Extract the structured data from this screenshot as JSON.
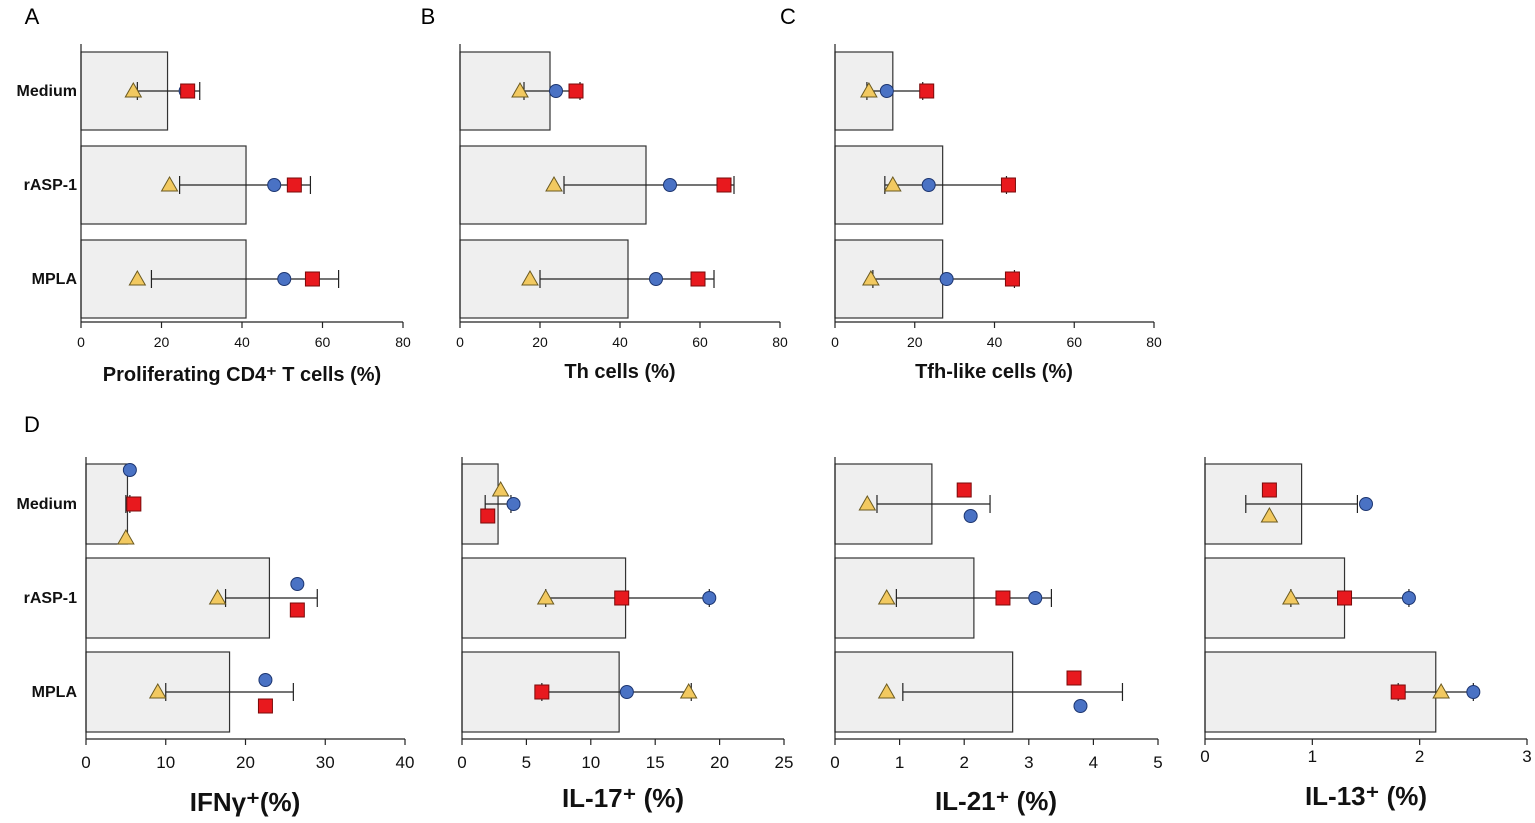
{
  "colors": {
    "bar_fill": "#efefef",
    "bar_stroke": "#333333",
    "triangle": "#f2c960",
    "triangle_stroke": "#6b5a20",
    "circle": "#4a72c4",
    "circle_stroke": "#1c3570",
    "square": "#e8191e",
    "square_stroke": "#7a0a0a",
    "axis": "#222222"
  },
  "chart_data": [
    {
      "type": "bar",
      "panel": "A",
      "letter": "A",
      "categories": [
        "Medium",
        "rASP-1",
        "MPLA"
      ],
      "values": [
        21.5,
        41,
        41
      ],
      "xlabel": "Proliferating CD4⁺ T cells (%)",
      "xlim": [
        0,
        80
      ],
      "xticks": [
        0,
        20,
        40,
        60,
        80
      ],
      "points": [
        {
          "triangle": 13,
          "circle": 26,
          "square": 26.5,
          "err": [
            14,
            29.5
          ]
        },
        {
          "triangle": 22,
          "circle": 48,
          "square": 53,
          "err": [
            24.5,
            57
          ]
        },
        {
          "triangle": 14,
          "circle": 50.5,
          "square": 57.5,
          "err": [
            17.5,
            64
          ]
        }
      ]
    },
    {
      "type": "bar",
      "panel": "B",
      "letter": "B",
      "categories": [
        "Medium",
        "rASP-1",
        "MPLA"
      ],
      "values": [
        22.5,
        46.5,
        42
      ],
      "xlabel": "Th cells (%)",
      "xlim": [
        0,
        80
      ],
      "xticks": [
        0,
        20,
        40,
        60,
        80
      ],
      "points": [
        {
          "triangle": 15,
          "circle": 24,
          "square": 29,
          "err": [
            16,
            30
          ]
        },
        {
          "triangle": 23.5,
          "circle": 52.5,
          "square": 66,
          "err": [
            26,
            68.5
          ]
        },
        {
          "triangle": 17.5,
          "circle": 49,
          "square": 59.5,
          "err": [
            20,
            63.5
          ]
        }
      ]
    },
    {
      "type": "bar",
      "panel": "C",
      "letter": "C",
      "categories": [
        "Medium",
        "rASP-1",
        "MPLA"
      ],
      "values": [
        14.5,
        27,
        27
      ],
      "xlabel": "Tfh-like cells (%)",
      "xlim": [
        0,
        80
      ],
      "xticks": [
        0,
        20,
        40,
        60,
        80
      ],
      "points": [
        {
          "triangle": 8.5,
          "circle": 13,
          "square": 23,
          "err": [
            8,
            22
          ]
        },
        {
          "triangle": 14.5,
          "circle": 23.5,
          "square": 43.5,
          "err": [
            12.5,
            43
          ]
        },
        {
          "triangle": 9,
          "circle": 28,
          "square": 44.5,
          "err": [
            9.5,
            45
          ]
        }
      ]
    },
    {
      "type": "bar",
      "panel": "D1",
      "letter": "D",
      "categories": [
        "Medium",
        "rASP-1",
        "MPLA"
      ],
      "values": [
        5.2,
        23,
        18
      ],
      "xlabel": "IFNγ⁺(%)",
      "xlim": [
        0,
        40
      ],
      "xticks": [
        0,
        10,
        20,
        30,
        40
      ],
      "points": [
        {
          "triangle": 5,
          "circle": 5.5,
          "square": 6,
          "err": [
            5,
            5.5
          ]
        },
        {
          "triangle": 16.5,
          "circle": 26.5,
          "square": 26.5,
          "err": [
            17.5,
            29
          ]
        },
        {
          "triangle": 9,
          "circle": 22.5,
          "square": 22.5,
          "err": [
            10,
            26
          ]
        }
      ]
    },
    {
      "type": "bar",
      "panel": "D2",
      "letter": "",
      "categories": [
        "Medium",
        "rASP-1",
        "MPLA"
      ],
      "values": [
        2.8,
        12.7,
        12.2
      ],
      "xlabel": "IL-17⁺ (%)",
      "xlim": [
        0,
        25
      ],
      "xticks": [
        0,
        5,
        10,
        15,
        20,
        25
      ],
      "points": [
        {
          "triangle": 3,
          "circle": 4,
          "square": 2,
          "err": [
            1.8,
            3.8
          ]
        },
        {
          "triangle": 6.5,
          "circle": 19.2,
          "square": 12.4,
          "err": [
            6.5,
            19.2
          ]
        },
        {
          "triangle": 17.6,
          "circle": 12.8,
          "square": 6.2,
          "err": [
            6.2,
            17.8
          ]
        }
      ]
    },
    {
      "type": "bar",
      "panel": "D3",
      "letter": "",
      "categories": [
        "Medium",
        "rASP-1",
        "MPLA"
      ],
      "values": [
        1.5,
        2.15,
        2.75
      ],
      "xlabel": "IL-21⁺ (%)",
      "xlim": [
        0,
        5
      ],
      "xticks": [
        0,
        1,
        2,
        3,
        4,
        5
      ],
      "points": [
        {
          "triangle": 0.5,
          "circle": 2.1,
          "square": 2,
          "err": [
            0.65,
            2.4
          ]
        },
        {
          "triangle": 0.8,
          "circle": 3.1,
          "square": 2.6,
          "err": [
            0.95,
            3.35
          ]
        },
        {
          "triangle": 0.8,
          "circle": 3.8,
          "square": 3.7,
          "err": [
            1.05,
            4.45
          ]
        }
      ]
    },
    {
      "type": "bar",
      "panel": "D4",
      "letter": "",
      "categories": [
        "Medium",
        "rASP-1",
        "MPLA"
      ],
      "values": [
        0.9,
        1.3,
        2.15
      ],
      "xlabel": "IL-13⁺ (%)",
      "xlim": [
        0,
        3
      ],
      "xticks": [
        0,
        1,
        2,
        3
      ],
      "points": [
        {
          "triangle": 0.6,
          "circle": 1.5,
          "square": 0.6,
          "err": [
            0.38,
            1.42
          ]
        },
        {
          "triangle": 0.8,
          "circle": 1.9,
          "square": 1.3,
          "err": [
            0.8,
            1.9
          ]
        },
        {
          "triangle": 2.2,
          "circle": 2.5,
          "square": 1.8,
          "err": [
            1.8,
            2.5
          ]
        }
      ]
    }
  ]
}
